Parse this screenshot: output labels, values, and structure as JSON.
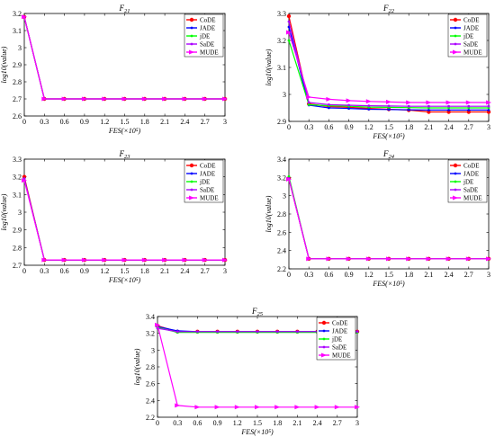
{
  "chart_data": [
    {
      "type": "line",
      "title": "F21",
      "xlabel": "FES(×10⁵)",
      "ylabel": "log10(value)",
      "xlim": [
        0,
        3
      ],
      "ylim": [
        2.6,
        3.2
      ],
      "x": [
        0,
        0.3,
        0.6,
        0.9,
        1.2,
        1.5,
        1.8,
        2.1,
        2.4,
        2.7,
        3
      ],
      "x_ticks": [
        "0",
        "0.3",
        "0.6",
        "0.9",
        "1.2",
        "1.5",
        "1.8",
        "2.1",
        "2.4",
        "2.7",
        "3"
      ],
      "y_ticks": [
        "2.6",
        "2.7",
        "2.8",
        "2.9",
        "3",
        "3.1",
        "3.2"
      ],
      "legend_position": "top-right",
      "series": [
        {
          "name": "CoDE",
          "color": "#ff0000",
          "values": [
            3.18,
            2.7,
            2.7,
            2.7,
            2.7,
            2.7,
            2.7,
            2.7,
            2.7,
            2.7,
            2.7
          ]
        },
        {
          "name": "JADE",
          "color": "#0000ff",
          "values": [
            3.18,
            2.7,
            2.7,
            2.7,
            2.7,
            2.7,
            2.7,
            2.7,
            2.7,
            2.7,
            2.7
          ]
        },
        {
          "name": "jDE",
          "color": "#00ff00",
          "values": [
            3.18,
            2.7,
            2.7,
            2.7,
            2.7,
            2.7,
            2.7,
            2.7,
            2.7,
            2.7,
            2.7
          ]
        },
        {
          "name": "SaDE",
          "color": "#aa00ff",
          "values": [
            3.18,
            2.7,
            2.7,
            2.7,
            2.7,
            2.7,
            2.7,
            2.7,
            2.7,
            2.7,
            2.7
          ]
        },
        {
          "name": "MUDE",
          "color": "#ff00ff",
          "values": [
            3.18,
            2.7,
            2.7,
            2.7,
            2.7,
            2.7,
            2.7,
            2.7,
            2.7,
            2.7,
            2.7
          ]
        }
      ]
    },
    {
      "type": "line",
      "title": "F22",
      "xlabel": "FES(×10⁵)",
      "ylabel": "log10(value)",
      "xlim": [
        0,
        3
      ],
      "ylim": [
        2.9,
        3.3
      ],
      "x": [
        0,
        0.3,
        0.6,
        0.9,
        1.2,
        1.5,
        1.8,
        2.1,
        2.4,
        2.7,
        3
      ],
      "x_ticks": [
        "0",
        "0.3",
        "0.6",
        "0.9",
        "1.2",
        "1.5",
        "1.8",
        "2.1",
        "2.4",
        "2.7",
        "3"
      ],
      "y_ticks": [
        "2.9",
        "3",
        "3.1",
        "3.2",
        "3.3"
      ],
      "legend_position": "top-right",
      "series": [
        {
          "name": "CoDE",
          "color": "#ff0000",
          "values": [
            3.29,
            2.965,
            2.955,
            2.952,
            2.948,
            2.945,
            2.942,
            2.935,
            2.935,
            2.935,
            2.935
          ]
        },
        {
          "name": "JADE",
          "color": "#0000ff",
          "values": [
            3.25,
            2.96,
            2.95,
            2.948,
            2.945,
            2.944,
            2.943,
            2.942,
            2.942,
            2.942,
            2.942
          ]
        },
        {
          "name": "jDE",
          "color": "#00ff00",
          "values": [
            3.2,
            2.962,
            2.958,
            2.956,
            2.953,
            2.952,
            2.951,
            2.95,
            2.95,
            2.95,
            2.95
          ]
        },
        {
          "name": "SaDE",
          "color": "#aa00ff",
          "values": [
            3.27,
            2.97,
            2.962,
            2.96,
            2.958,
            2.957,
            2.956,
            2.956,
            2.956,
            2.956,
            2.956
          ]
        },
        {
          "name": "MUDE",
          "color": "#ff00ff",
          "values": [
            3.23,
            2.99,
            2.982,
            2.977,
            2.974,
            2.972,
            2.97,
            2.97,
            2.97,
            2.97,
            2.97
          ]
        }
      ]
    },
    {
      "type": "line",
      "title": "F23",
      "xlabel": "FES(×10⁵)",
      "ylabel": "log10(value)",
      "xlim": [
        0,
        3
      ],
      "ylim": [
        2.7,
        3.3
      ],
      "x": [
        0,
        0.3,
        0.6,
        0.9,
        1.2,
        1.5,
        1.8,
        2.1,
        2.4,
        2.7,
        3
      ],
      "x_ticks": [
        "0",
        "0.3",
        "0.6",
        "0.9",
        "1.2",
        "1.5",
        "1.8",
        "2.1",
        "2.4",
        "2.7",
        "3"
      ],
      "y_ticks": [
        "2.7",
        "2.8",
        "2.9",
        "3",
        "3.1",
        "3.2",
        "3.3"
      ],
      "legend_position": "top-right",
      "series": [
        {
          "name": "CoDE",
          "color": "#ff0000",
          "values": [
            3.2,
            2.73,
            2.73,
            2.73,
            2.73,
            2.73,
            2.73,
            2.73,
            2.73,
            2.73,
            2.73
          ]
        },
        {
          "name": "JADE",
          "color": "#0000ff",
          "values": [
            3.19,
            2.73,
            2.73,
            2.73,
            2.73,
            2.73,
            2.73,
            2.73,
            2.73,
            2.73,
            2.73
          ]
        },
        {
          "name": "jDE",
          "color": "#00ff00",
          "values": [
            3.19,
            2.73,
            2.73,
            2.73,
            2.73,
            2.73,
            2.73,
            2.73,
            2.73,
            2.73,
            2.73
          ]
        },
        {
          "name": "SaDE",
          "color": "#aa00ff",
          "values": [
            3.19,
            2.73,
            2.73,
            2.73,
            2.73,
            2.73,
            2.73,
            2.73,
            2.73,
            2.73,
            2.73
          ]
        },
        {
          "name": "MUDE",
          "color": "#ff00ff",
          "values": [
            3.18,
            2.73,
            2.73,
            2.73,
            2.73,
            2.73,
            2.73,
            2.73,
            2.73,
            2.73,
            2.73
          ]
        }
      ]
    },
    {
      "type": "line",
      "title": "F24",
      "xlabel": "FES(×10⁵)",
      "ylabel": "log10(value)",
      "xlim": [
        0,
        3
      ],
      "ylim": [
        2.2,
        3.4
      ],
      "x": [
        0,
        0.3,
        0.6,
        0.9,
        1.2,
        1.5,
        1.8,
        2.1,
        2.4,
        2.7,
        3
      ],
      "x_ticks": [
        "0",
        "0.3",
        "0.6",
        "0.9",
        "1.2",
        "1.5",
        "1.8",
        "2.1",
        "2.4",
        "2.7",
        "3"
      ],
      "y_ticks": [
        "2.2",
        "2.4",
        "2.6",
        "2.8",
        "3",
        "3.2",
        "3.4"
      ],
      "legend_position": "top-right",
      "series": [
        {
          "name": "CoDE",
          "color": "#ff0000",
          "values": [
            3.19,
            2.31,
            2.31,
            2.31,
            2.31,
            2.31,
            2.31,
            2.31,
            2.31,
            2.31,
            2.31
          ]
        },
        {
          "name": "JADE",
          "color": "#0000ff",
          "values": [
            3.19,
            2.31,
            2.31,
            2.31,
            2.31,
            2.31,
            2.31,
            2.31,
            2.31,
            2.31,
            2.31
          ]
        },
        {
          "name": "jDE",
          "color": "#00ff00",
          "values": [
            3.21,
            2.31,
            2.31,
            2.31,
            2.31,
            2.31,
            2.31,
            2.31,
            2.31,
            2.31,
            2.31
          ]
        },
        {
          "name": "SaDE",
          "color": "#aa00ff",
          "values": [
            3.19,
            2.31,
            2.31,
            2.31,
            2.31,
            2.31,
            2.31,
            2.31,
            2.31,
            2.31,
            2.31
          ]
        },
        {
          "name": "MUDE",
          "color": "#ff00ff",
          "values": [
            3.18,
            2.31,
            2.31,
            2.31,
            2.31,
            2.31,
            2.31,
            2.31,
            2.31,
            2.31,
            2.31
          ]
        }
      ]
    },
    {
      "type": "line",
      "title": "F25",
      "xlabel": "FES(×10⁵)",
      "ylabel": "log10(value)",
      "xlim": [
        0,
        3
      ],
      "ylim": [
        2.2,
        3.4
      ],
      "x": [
        0,
        0.3,
        0.6,
        0.9,
        1.2,
        1.5,
        1.8,
        2.1,
        2.4,
        2.7,
        3
      ],
      "x_ticks": [
        "0",
        "0.3",
        "0.6",
        "0.9",
        "1.2",
        "1.5",
        "1.8",
        "2.1",
        "2.4",
        "2.7",
        "3"
      ],
      "y_ticks": [
        "2.2",
        "2.4",
        "2.6",
        "2.8",
        "3",
        "3.2",
        "3.4"
      ],
      "legend_position": "top-right",
      "series": [
        {
          "name": "CoDE",
          "color": "#ff0000",
          "values": [
            3.29,
            3.22,
            3.22,
            3.22,
            3.22,
            3.22,
            3.22,
            3.22,
            3.22,
            3.22,
            3.22
          ]
        },
        {
          "name": "JADE",
          "color": "#0000ff",
          "values": [
            3.28,
            3.23,
            3.22,
            3.22,
            3.22,
            3.22,
            3.22,
            3.22,
            3.22,
            3.22,
            3.22
          ]
        },
        {
          "name": "jDE",
          "color": "#00ff00",
          "values": [
            3.27,
            3.21,
            3.21,
            3.21,
            3.21,
            3.21,
            3.21,
            3.21,
            3.21,
            3.21,
            3.21
          ]
        },
        {
          "name": "SaDE",
          "color": "#aa00ff",
          "values": [
            3.26,
            3.22,
            3.22,
            3.22,
            3.22,
            3.22,
            3.22,
            3.22,
            3.22,
            3.22,
            3.22
          ]
        },
        {
          "name": "MUDE",
          "color": "#ff00ff",
          "values": [
            3.3,
            2.34,
            2.32,
            2.32,
            2.32,
            2.32,
            2.32,
            2.32,
            2.32,
            2.32,
            2.32
          ]
        }
      ]
    }
  ]
}
